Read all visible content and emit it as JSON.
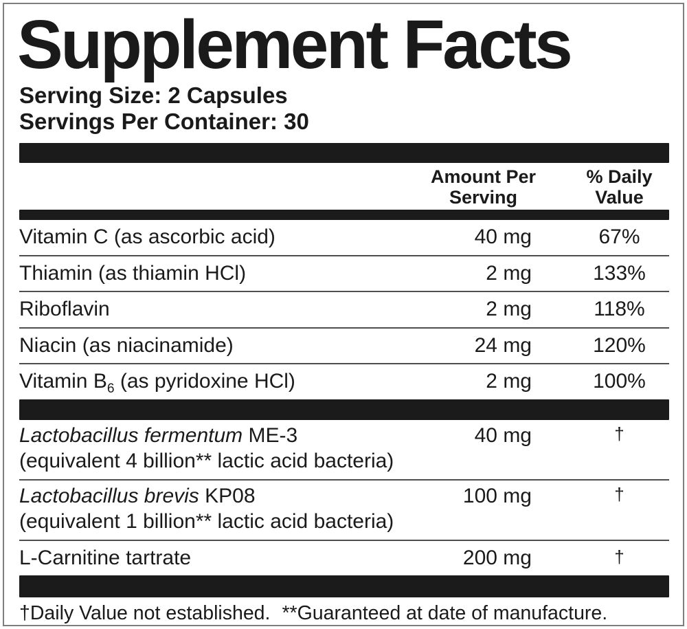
{
  "colors": {
    "text": "#1a1a1a",
    "bar": "#1b1b1b",
    "border": "#7e7e7e",
    "separator": "#4e4e4e"
  },
  "label": {
    "title": "Supplement Facts",
    "serving_size": "Serving Size: 2 Capsules",
    "servings_per_container": "Servings Per Container: 30"
  },
  "table": {
    "headers": {
      "amount": "Amount Per\nServing",
      "daily_value": "% Daily\nValue"
    },
    "rows": [
      {
        "name": "Vitamin C (as ascorbic acid)",
        "amount": "40 mg",
        "dv": "67%"
      },
      {
        "name": "Thiamin (as thiamin HCl)",
        "amount": "2 mg",
        "dv": "133%"
      },
      {
        "name": "Riboflavin",
        "amount": "2 mg",
        "dv": "118%"
      },
      {
        "name": "Niacin (as niacinamide)",
        "amount": "24 mg",
        "dv": "120%"
      },
      {
        "name_pre": "Vitamin B",
        "name_sub": "6",
        "name_post": " (as pyridoxine HCl)",
        "amount": "2 mg",
        "dv": "100%"
      },
      {
        "name_italic": "Lactobacillus fermentum",
        "name_rest": " ME-3",
        "desc": "(equivalent 4 billion** lactic acid bacteria)",
        "amount": "40 mg",
        "dv": "†"
      },
      {
        "name_italic": "Lactobacillus brevis",
        "name_rest": " KP08",
        "desc": "(equivalent 1 billion** lactic acid bacteria)",
        "amount": "100 mg",
        "dv": "†"
      },
      {
        "name": "L-Carnitine tartrate",
        "amount": "200 mg",
        "dv": "†"
      }
    ]
  },
  "footnote": {
    "part1": "†Daily Value not established.",
    "part2": "**Guaranteed at date of manufacture."
  }
}
